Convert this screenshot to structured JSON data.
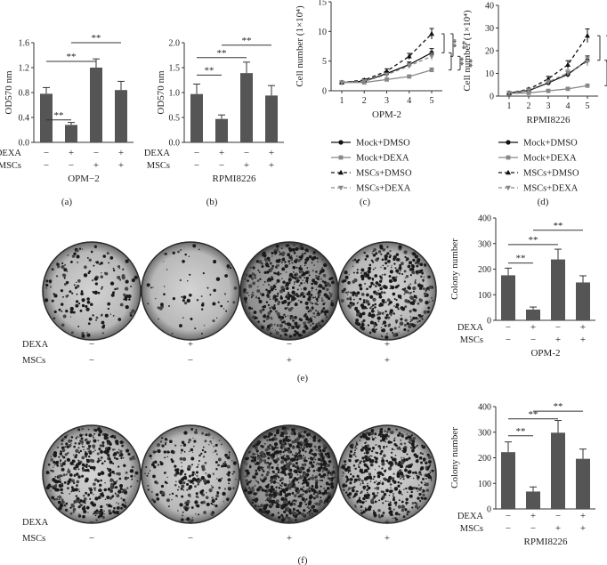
{
  "chart_data": [
    {
      "panel": "(a)",
      "type": "bar",
      "ylabel": "OD570 nm",
      "xlabel": "OPM−2",
      "yticks": [
        "0.0",
        "0.4",
        "0.8",
        "1.2",
        "1.6"
      ],
      "ylim": [
        0,
        1.6
      ],
      "values": [
        0.78,
        0.28,
        1.2,
        0.84
      ],
      "errors": [
        0.1,
        0.04,
        0.14,
        0.14
      ],
      "treatment_rows": [
        {
          "label": "DEXA",
          "signs": [
            "−",
            "+",
            "−",
            "+"
          ]
        },
        {
          "label": "MSCs",
          "signs": [
            "−",
            "−",
            "+",
            "+"
          ]
        }
      ],
      "sig": [
        {
          "from": 0,
          "to": 1,
          "label": "**",
          "y": 0.36
        },
        {
          "from": 0,
          "to": 2,
          "label": "**",
          "y": 1.3
        },
        {
          "from": 1,
          "to": 3,
          "label": "**",
          "y": 1.6
        }
      ]
    },
    {
      "panel": "(b)",
      "type": "bar",
      "ylabel": "OD570 nm",
      "xlabel": "RPMI8226",
      "yticks": [
        "0.0",
        "0.5",
        "1.0",
        "1.5",
        "2.0"
      ],
      "ylim": [
        0,
        2.0
      ],
      "values": [
        0.97,
        0.47,
        1.39,
        0.94
      ],
      "errors": [
        0.2,
        0.08,
        0.22,
        0.2
      ],
      "treatment_rows": [
        {
          "label": "DEXA",
          "signs": [
            "−",
            "+",
            "−",
            "+"
          ]
        },
        {
          "label": "MSCs",
          "signs": [
            "−",
            "−",
            "+",
            "+"
          ]
        }
      ],
      "sig": [
        {
          "from": 0,
          "to": 1,
          "label": "**",
          "y": 1.35
        },
        {
          "from": 0,
          "to": 2,
          "label": "**",
          "y": 1.7
        },
        {
          "from": 1,
          "to": 3,
          "label": "**",
          "y": 1.95
        }
      ]
    },
    {
      "panel": "(c)",
      "type": "line",
      "ylabel": "Cell number (1×10⁴)",
      "xlabel": "OPM-2",
      "x": [
        1,
        2,
        3,
        4,
        5
      ],
      "xticks": [
        "1",
        "2",
        "3",
        "4",
        "5"
      ],
      "yticks": [
        "0",
        "5",
        "10",
        "15"
      ],
      "ylim": [
        0,
        15
      ],
      "series": [
        {
          "name": "Mock+DMSO",
          "values": [
            1.4,
            1.6,
            2.9,
            4.4,
            6.4
          ],
          "errors": [
            0.1,
            0.15,
            0.35,
            0.45,
            0.7
          ],
          "style": "solid",
          "color": "#111111",
          "marker": "circle"
        },
        {
          "name": "Mock+DEXA",
          "values": [
            1.4,
            1.4,
            1.9,
            2.4,
            3.5
          ],
          "errors": [
            0.1,
            0.1,
            0.2,
            0.25,
            0.35
          ],
          "style": "solid",
          "color": "#888888",
          "marker": "square"
        },
        {
          "name": "MSCs+DMSO",
          "values": [
            1.4,
            1.8,
            3.3,
            5.8,
            9.6
          ],
          "errors": [
            0.1,
            0.2,
            0.4,
            0.5,
            0.9
          ],
          "style": "dashed",
          "color": "#111111",
          "marker": "triangle"
        },
        {
          "name": "MSCs+DEXA",
          "values": [
            1.4,
            1.6,
            2.7,
            4.2,
            5.8
          ],
          "errors": [
            0.1,
            0.15,
            0.3,
            0.4,
            0.6
          ],
          "style": "dashed",
          "color": "#888888",
          "marker": "triangle-down"
        }
      ],
      "sig": [
        "**",
        "**",
        "**",
        "**"
      ]
    },
    {
      "panel": "(d)",
      "type": "line",
      "ylabel": "Cell number (1×10⁴)",
      "xlabel": "RPMI8226",
      "x": [
        1,
        2,
        3,
        4,
        5
      ],
      "xticks": [
        "1",
        "2",
        "3",
        "4",
        "5"
      ],
      "yticks": [
        "0",
        "10",
        "20",
        "30",
        "40"
      ],
      "ylim": [
        0,
        40
      ],
      "series": [
        {
          "name": "Mock+DMSO",
          "values": [
            1.4,
            2.4,
            5.8,
            9.6,
            15.8
          ],
          "errors": [
            0.2,
            0.4,
            0.9,
            1.3,
            1.9
          ],
          "style": "solid",
          "color": "#111111",
          "marker": "circle"
        },
        {
          "name": "Mock+DEXA",
          "values": [
            1.2,
            1.4,
            2.3,
            3.2,
            4.6
          ],
          "errors": [
            0.15,
            0.2,
            0.35,
            0.45,
            0.65
          ],
          "style": "solid",
          "color": "#888888",
          "marker": "square"
        },
        {
          "name": "MSCs+DMSO",
          "values": [
            1.4,
            3.0,
            7.6,
            13.8,
            26.6
          ],
          "errors": [
            0.2,
            0.5,
            1.1,
            1.8,
            3.0
          ],
          "style": "dashed",
          "color": "#111111",
          "marker": "triangle"
        },
        {
          "name": "MSCs+DEXA",
          "values": [
            1.4,
            2.6,
            6.2,
            10.2,
            15.2
          ],
          "errors": [
            0.2,
            0.4,
            0.9,
            1.3,
            1.9
          ],
          "style": "dashed",
          "color": "#888888",
          "marker": "triangle-down"
        }
      ],
      "sig": [
        "**",
        "**",
        "**",
        "**"
      ]
    },
    {
      "panel": "(e)",
      "type": "bar",
      "ylabel": "Colony number",
      "xlabel": "OPM-2",
      "yticks": [
        "0",
        "100",
        "200",
        "300",
        "400"
      ],
      "ylim": [
        0,
        400
      ],
      "values": [
        176,
        42,
        238,
        148
      ],
      "errors": [
        28,
        10,
        40,
        26
      ],
      "treatment_rows": [
        {
          "label": "DEXA",
          "signs": [
            "−",
            "+",
            "−",
            "+"
          ]
        },
        {
          "label": "MSCs",
          "signs": [
            "−",
            "−",
            "+",
            "+"
          ]
        }
      ],
      "sig": [
        {
          "from": 0,
          "to": 1,
          "label": "**",
          "y": 224
        },
        {
          "from": 0,
          "to": 2,
          "label": "**",
          "y": 296
        },
        {
          "from": 1,
          "to": 3,
          "label": "**",
          "y": 352
        }
      ]
    },
    {
      "panel": "(f)",
      "type": "bar",
      "ylabel": "Colony number",
      "xlabel": "RPMI8226",
      "yticks": [
        "0",
        "100",
        "200",
        "300",
        "400"
      ],
      "ylim": [
        0,
        400
      ],
      "values": [
        222,
        68,
        298,
        196
      ],
      "errors": [
        40,
        18,
        48,
        38
      ],
      "treatment_rows": [
        {
          "label": "DEXA",
          "signs": [
            "−",
            "+",
            "−",
            "+"
          ]
        },
        {
          "label": "MSCs",
          "signs": [
            "−",
            "−",
            "+",
            "+"
          ]
        }
      ],
      "sig": [
        {
          "from": 0,
          "to": 1,
          "label": "**",
          "y": 286
        },
        {
          "from": 0,
          "to": 2,
          "label": "**",
          "y": 352
        },
        {
          "from": 1,
          "to": 3,
          "label": "**",
          "y": 382
        }
      ]
    }
  ],
  "colony_panels": [
    {
      "panel": "(e)",
      "treatment_rows": [
        {
          "label": "DEXA",
          "signs": [
            "−",
            "+",
            "−",
            "+"
          ]
        },
        {
          "label": "MSCs",
          "signs": [
            "−",
            "−",
            "+",
            "+"
          ]
        }
      ]
    },
    {
      "panel": "(f)",
      "treatment_rows": [
        {
          "label": "DEXA",
          "signs": [
            "−",
            "+",
            "−",
            "+"
          ]
        },
        {
          "label": "MSCs",
          "signs": [
            "−",
            "−",
            "+",
            "+"
          ]
        }
      ]
    }
  ],
  "colors": {
    "bar": "#555555",
    "axis": "#333333"
  }
}
